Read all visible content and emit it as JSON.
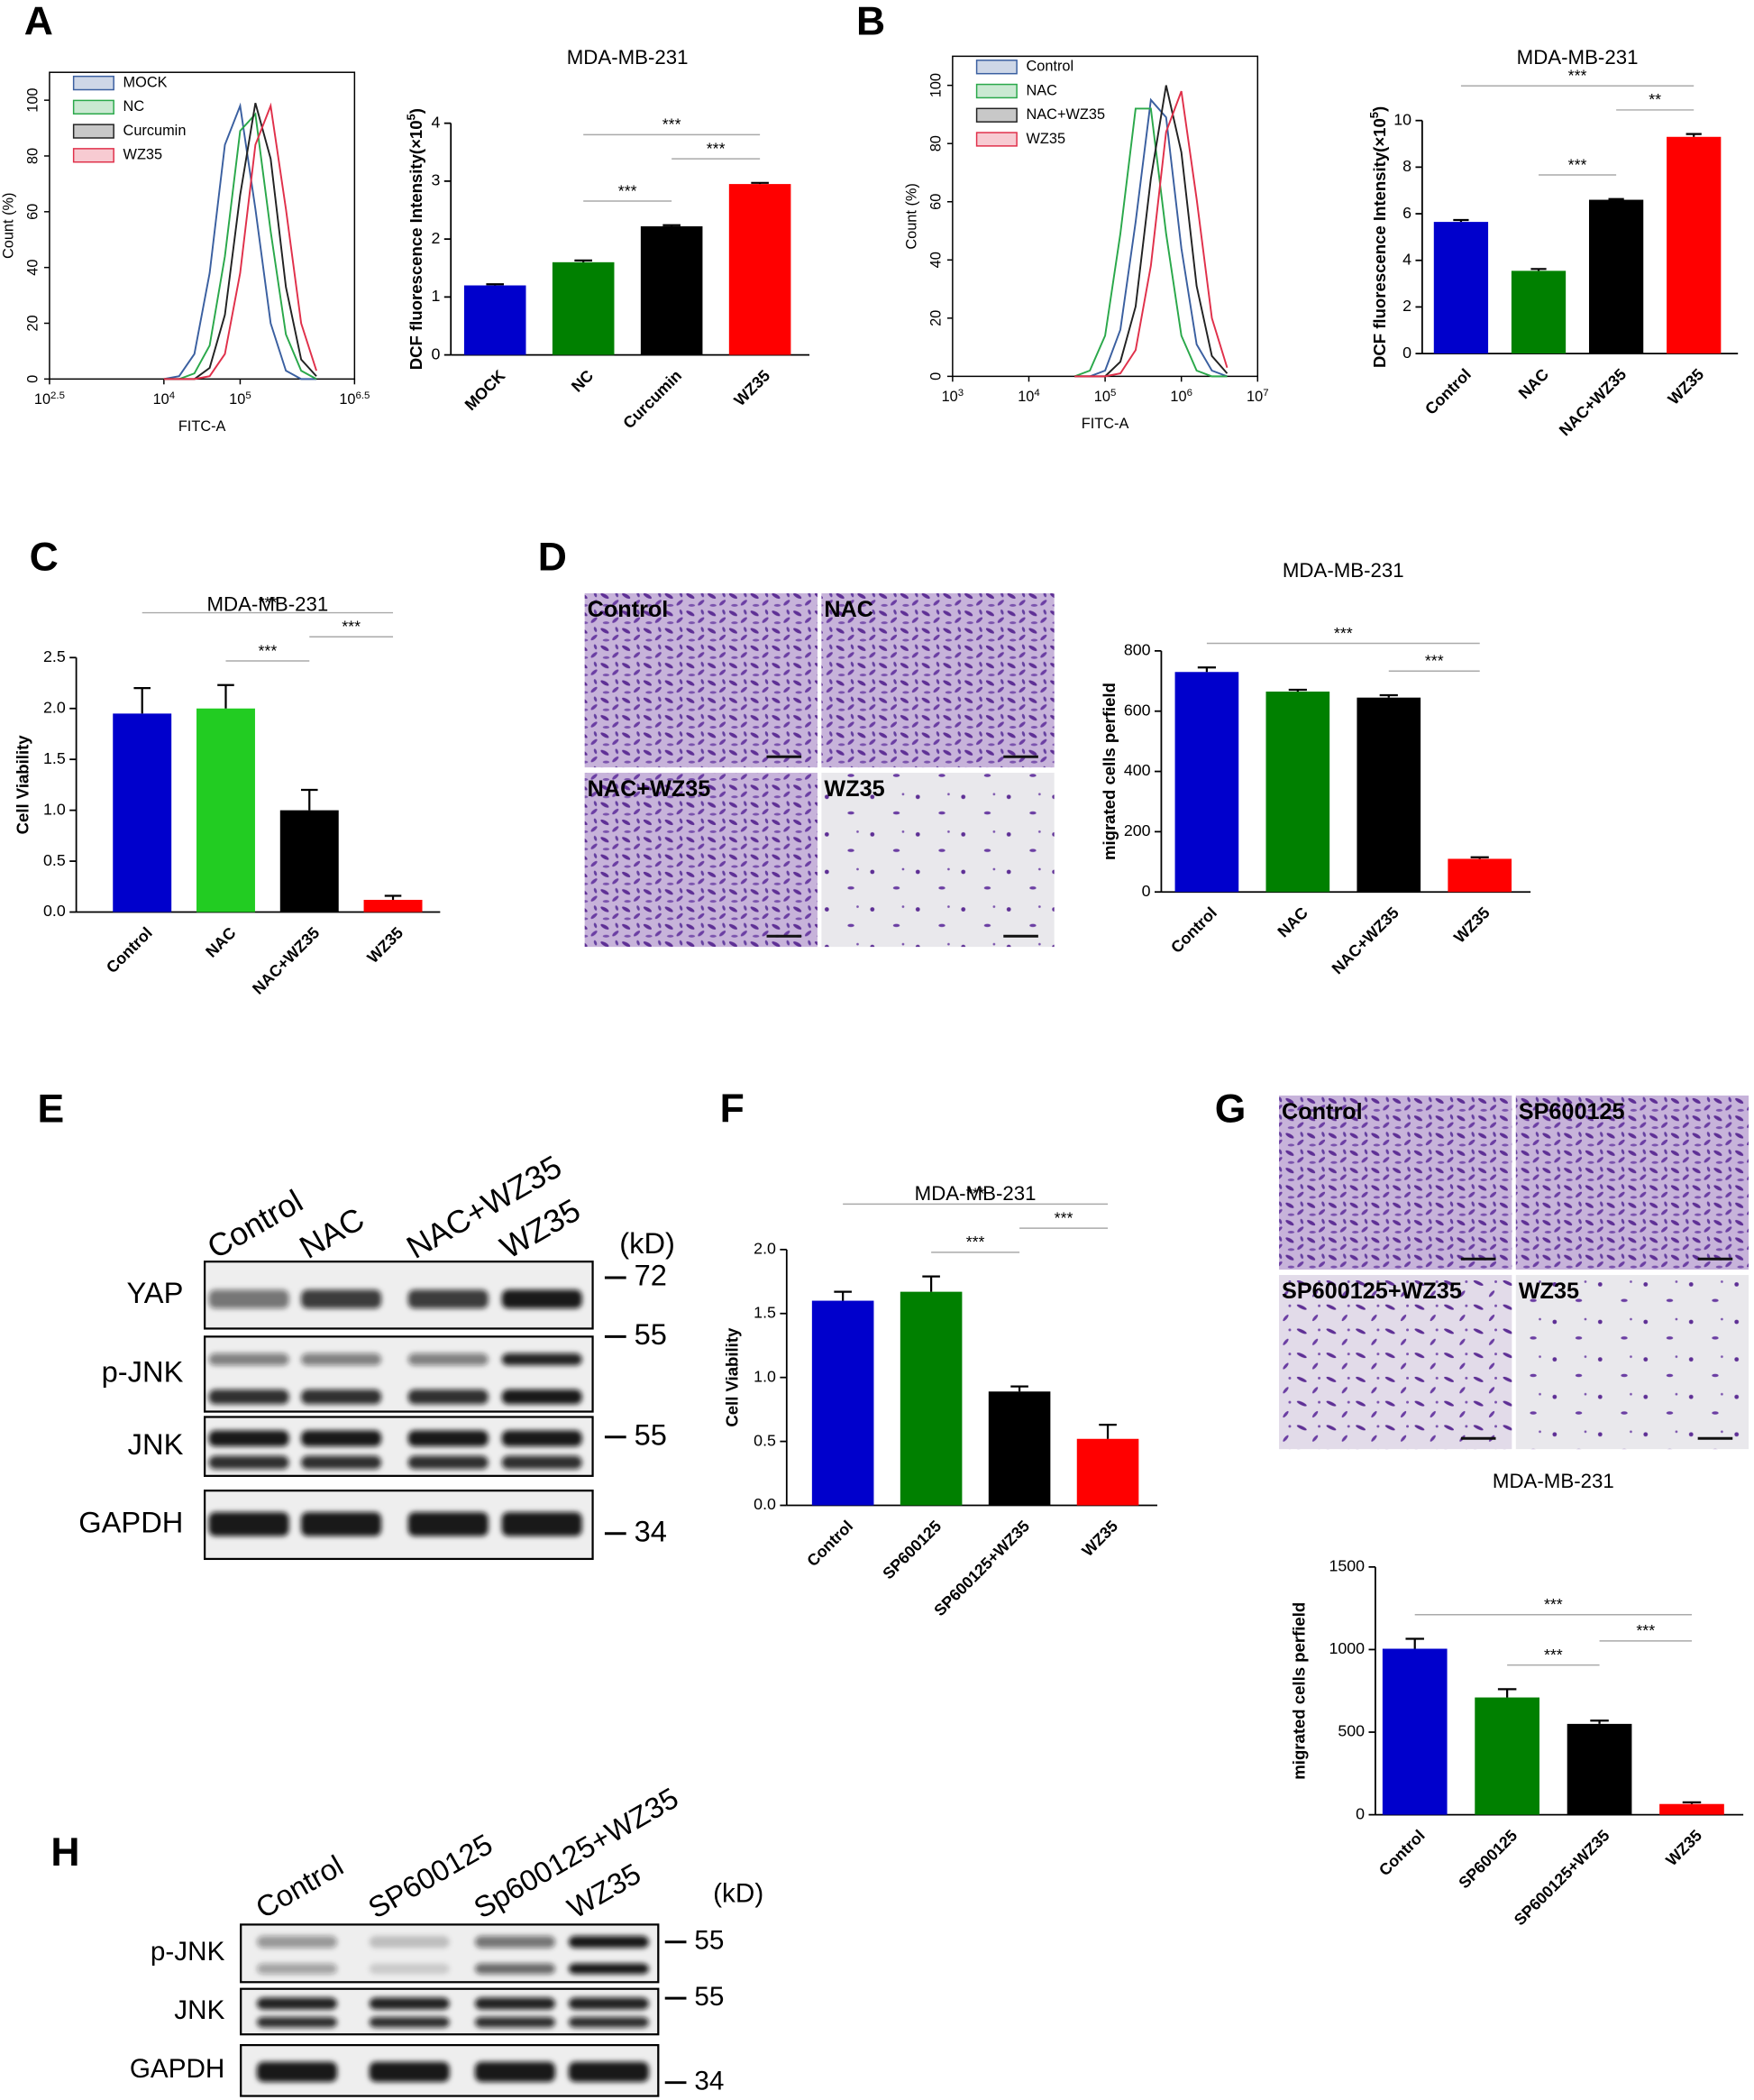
{
  "panel_labels": [
    "A",
    "B",
    "C",
    "D",
    "E",
    "F",
    "G",
    "H"
  ],
  "chart_data": [
    {
      "type": "line",
      "xlabel": "FITC-A",
      "ylabel": "Count (%)",
      "xscale": "log",
      "legend": "upper left",
      "x": [
        10000,
        15849,
        25119,
        39811,
        63096,
        100000,
        158489,
        251189,
        398107,
        630957,
        1000000
      ],
      "series": [
        {
          "name": "MOCK",
          "color": "#3a5fa0",
          "values": [
            0,
            1,
            9,
            38,
            84,
            98,
            61,
            20,
            3,
            0,
            0
          ]
        },
        {
          "name": "NC",
          "color": "#2aa84a",
          "values": [
            0,
            0,
            2,
            12,
            44,
            89,
            95,
            53,
            16,
            3,
            0
          ]
        },
        {
          "name": "Curcumin",
          "color": "#222222",
          "values": [
            0,
            0,
            0,
            4,
            23,
            66,
            99,
            79,
            33,
            7,
            1
          ]
        },
        {
          "name": "WZ35",
          "color": "#e0304a",
          "values": [
            0,
            0,
            0,
            1,
            9,
            38,
            84,
            98,
            61,
            20,
            3
          ]
        }
      ],
      "xlim": [
        316.227766,
        3162277.66
      ],
      "xticks": [
        {
          "value": 316.227766,
          "label": "10^2.5"
        },
        {
          "value": 10000,
          "label": "10^4"
        },
        {
          "value": 100000,
          "label": "10^5"
        },
        {
          "value": 3162277.66,
          "label": "10^6.5"
        }
      ],
      "ylim": [
        0,
        110
      ],
      "yticks": [
        0,
        20,
        40,
        60,
        80,
        100
      ]
    },
    {
      "type": "bar",
      "title": "MDA-MB-231",
      "ylabel": "DCF fluorescence Intensity(×10^5)",
      "categories": [
        "MOCK",
        "NC",
        "Curcumin",
        "WZ35"
      ],
      "values": [
        1.2,
        1.6,
        2.22,
        2.95
      ],
      "errors": [
        0.02,
        0.03,
        0.02,
        0.02
      ],
      "colors": [
        "#0000cc",
        "#008000",
        "#000000",
        "#ff0000"
      ],
      "ylim": [
        0,
        4
      ],
      "yticks": [
        0,
        1,
        2,
        3,
        4
      ],
      "annotations": [
        {
          "text": "***",
          "between": [
            "NC",
            "Curcumin"
          ]
        },
        {
          "text": "***",
          "between": [
            "Curcumin",
            "WZ35"
          ]
        },
        {
          "text": "***",
          "between": [
            "NC",
            "WZ35"
          ]
        }
      ]
    },
    {
      "type": "line",
      "xlabel": "FITC-A",
      "ylabel": "Count (%)",
      "xscale": "log",
      "legend": "upper left",
      "x": [
        39811,
        63096,
        100000,
        158489,
        251189,
        398107,
        630957,
        1000000,
        1584893,
        2511886,
        3981072
      ],
      "series": [
        {
          "name": "Control",
          "color": "#3a5fa0",
          "values": [
            0,
            0,
            2,
            16,
            53,
            95,
            89,
            44,
            11,
            2,
            0
          ]
        },
        {
          "name": "NAC",
          "color": "#2aa84a",
          "values": [
            0,
            2,
            14,
            49,
            92,
            92,
            49,
            14,
            2,
            0,
            0
          ]
        },
        {
          "name": "NAC+WZ35",
          "color": "#222222",
          "values": [
            0,
            0,
            0,
            5,
            24,
            68,
            100,
            77,
            31,
            7,
            1
          ]
        },
        {
          "name": "WZ35",
          "color": "#e0304a",
          "values": [
            0,
            0,
            0,
            1,
            9,
            38,
            84,
            98,
            61,
            20,
            3
          ]
        }
      ],
      "xlim": [
        1000,
        10000000
      ],
      "xticks": [
        {
          "value": 1000,
          "label": "10^3"
        },
        {
          "value": 10000,
          "label": "10^4"
        },
        {
          "value": 100000,
          "label": "10^5"
        },
        {
          "value": 1000000,
          "label": "10^6"
        },
        {
          "value": 10000000,
          "label": "10^7"
        }
      ],
      "ylim": [
        0,
        110
      ],
      "yticks": [
        0,
        20,
        40,
        60,
        80,
        100
      ]
    },
    {
      "type": "bar",
      "title": "MDA-MB-231",
      "ylabel": "DCF fluorescence Intensity(×10^5)",
      "categories": [
        "Control",
        "NAC",
        "NAC+WZ35",
        "WZ35"
      ],
      "values": [
        5.65,
        3.55,
        6.6,
        9.3
      ],
      "errors": [
        0.08,
        0.08,
        0.03,
        0.12
      ],
      "colors": [
        "#0000cc",
        "#008000",
        "#000000",
        "#ff0000"
      ],
      "ylim": [
        0,
        10
      ],
      "yticks": [
        0,
        2,
        4,
        6,
        8,
        10
      ],
      "annotations": [
        {
          "text": "***",
          "between": [
            "NAC",
            "NAC+WZ35"
          ]
        },
        {
          "text": "**",
          "between": [
            "NAC+WZ35",
            "WZ35"
          ]
        },
        {
          "text": "***",
          "between": [
            "Control",
            "WZ35"
          ]
        }
      ]
    },
    {
      "type": "bar",
      "title": "MDA-MB-231",
      "ylabel": "Cell Viability",
      "categories": [
        "Control",
        "NAC",
        "NAC+WZ35",
        "WZ35"
      ],
      "values": [
        1.95,
        2.0,
        1.0,
        0.12
      ],
      "errors": [
        0.25,
        0.23,
        0.2,
        0.04
      ],
      "colors": [
        "#0000cc",
        "#22cc22",
        "#000000",
        "#ff0000"
      ],
      "ylim": [
        0,
        2.5
      ],
      "yticks": [
        {
          "value": 0,
          "label": "0.0"
        },
        0.5,
        {
          "value": 1,
          "label": "1.0"
        },
        1.5,
        {
          "value": 2,
          "label": "2.0"
        },
        2.5
      ],
      "annotations": [
        {
          "text": "***",
          "between": [
            "NAC",
            "NAC+WZ35"
          ]
        },
        {
          "text": "***",
          "between": [
            "NAC+WZ35",
            "WZ35"
          ]
        },
        {
          "text": "***",
          "between": [
            "Control",
            "WZ35"
          ]
        }
      ]
    },
    {
      "type": "bar",
      "title": "MDA-MB-231",
      "ylabel": "migrated cells perfield",
      "categories": [
        "Control",
        "NAC",
        "NAC+WZ35",
        "WZ35"
      ],
      "values": [
        730,
        665,
        645,
        110
      ],
      "errors": [
        15,
        6,
        8,
        5
      ],
      "colors": [
        "#0000cc",
        "#008000",
        "#000000",
        "#ff0000"
      ],
      "ylim": [
        0,
        800
      ],
      "yticks": [
        0,
        200,
        400,
        600,
        800
      ],
      "annotations": [
        {
          "text": "***",
          "between": [
            "NAC+WZ35",
            "WZ35"
          ]
        },
        {
          "text": "***",
          "between": [
            "Control",
            "WZ35"
          ]
        }
      ]
    },
    {
      "type": "bar",
      "title": "MDA-MB-231",
      "ylabel": "Cell Viability",
      "categories": [
        "Control",
        "SP600125",
        "SP600125+WZ35",
        "WZ35"
      ],
      "values": [
        1.6,
        1.67,
        0.89,
        0.52
      ],
      "errors": [
        0.07,
        0.12,
        0.04,
        0.11
      ],
      "colors": [
        "#0000cc",
        "#008000",
        "#000000",
        "#ff0000"
      ],
      "ylim": [
        0,
        2
      ],
      "yticks": [
        {
          "value": 0,
          "label": "0.0"
        },
        0.5,
        {
          "value": 1,
          "label": "1.0"
        },
        1.5,
        {
          "value": 2,
          "label": "2.0"
        }
      ],
      "annotations": [
        {
          "text": "***",
          "between": [
            "SP600125",
            "SP600125+WZ35"
          ]
        },
        {
          "text": "***",
          "between": [
            "SP600125+WZ35",
            "WZ35"
          ]
        },
        {
          "text": "***",
          "between": [
            "Control",
            "WZ35"
          ]
        }
      ]
    },
    {
      "type": "bar",
      "title": "MDA-MB-231",
      "ylabel": "migrated cells perfield",
      "categories": [
        "Control",
        "SP600125",
        "SP600125+WZ35",
        "WZ35"
      ],
      "values": [
        1005,
        710,
        550,
        65
      ],
      "errors": [
        60,
        50,
        20,
        10
      ],
      "colors": [
        "#0000cc",
        "#008000",
        "#000000",
        "#ff0000"
      ],
      "ylim": [
        0,
        1500
      ],
      "yticks": [
        0,
        500,
        1000,
        1500
      ],
      "annotations": [
        {
          "text": "***",
          "between": [
            "SP600125",
            "SP600125+WZ35"
          ]
        },
        {
          "text": "***",
          "between": [
            "SP600125+WZ35",
            "WZ35"
          ]
        },
        {
          "text": "***",
          "between": [
            "Control",
            "WZ35"
          ]
        }
      ]
    }
  ],
  "micrographs": [
    [
      "Control",
      "NAC",
      "NAC+WZ35",
      "WZ35"
    ],
    [
      "Control",
      "SP600125",
      "SP600125+WZ35",
      "WZ35"
    ]
  ],
  "blots": [
    {
      "lanes": [
        "Control",
        "NAC",
        "NAC+WZ35",
        "WZ35"
      ],
      "unit": "(kD)",
      "rows": [
        {
          "name": "YAP",
          "marker": 72
        },
        {
          "name": "p-JNK",
          "marker": 55
        },
        {
          "name": "JNK",
          "marker": 55
        },
        {
          "name": "GAPDH",
          "marker": 34
        }
      ]
    },
    {
      "lanes": [
        "Control",
        "SP600125",
        "Sp600125+WZ35",
        "WZ35"
      ],
      "unit": "(kD)",
      "rows": [
        {
          "name": "p-JNK",
          "marker": 55
        },
        {
          "name": "JNK",
          "marker": 55
        },
        {
          "name": "GAPDH",
          "marker": 34
        }
      ]
    }
  ]
}
